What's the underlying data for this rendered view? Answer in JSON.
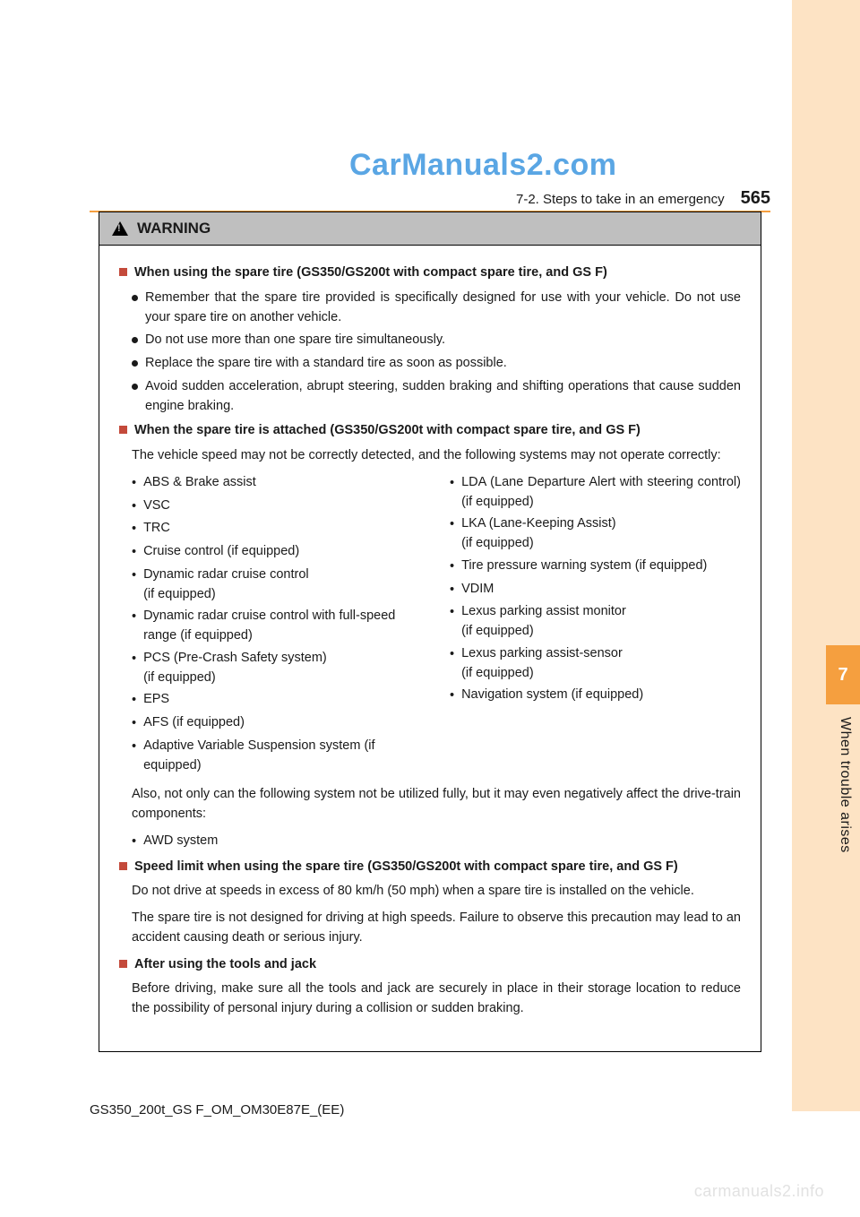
{
  "watermark_top": "CarManuals2.com",
  "watermark_bottom": "carmanuals2.info",
  "header": {
    "breadcrumb": "7-2. Steps to take in an emergency",
    "page_number": "565"
  },
  "sidebar": {
    "chapter_number": "7",
    "chapter_label": "When trouble arises",
    "bg_color": "#fde3c4",
    "tab_color": "#f59f3f"
  },
  "warning": {
    "title": "WARNING",
    "sections": [
      {
        "heading": "When using the spare tire (GS350/GS200t with compact spare tire, and GS F)",
        "bullets": [
          "Remember that the spare tire provided is specifically designed for use with your vehicle. Do not use your spare tire on another vehicle.",
          "Do not use more than one spare tire simultaneously.",
          "Replace the spare tire with a standard tire as soon as possible.",
          "Avoid sudden acceleration, abrupt steering, sudden braking and shifting operations that cause sudden engine braking."
        ]
      },
      {
        "heading": "When the spare tire is attached (GS350/GS200t with compact spare tire, and GS F)",
        "intro": "The vehicle speed may not be correctly detected, and the following systems may not operate correctly:",
        "columns": {
          "left": [
            "ABS & Brake assist",
            "VSC",
            "TRC",
            "Cruise control (if equipped)",
            "Dynamic radar cruise control\n(if equipped)",
            "Dynamic radar cruise control with full-speed range (if equipped)",
            "PCS (Pre-Crash Safety system)\n(if equipped)",
            "EPS",
            "AFS (if equipped)",
            "Adaptive Variable Suspension system (if equipped)"
          ],
          "right": [
            {
              "text": "LDA (Lane Departure Alert with steering control) (if equipped)",
              "justify": true
            },
            {
              "text": "LKA (Lane-Keeping Assist)\n(if equipped)"
            },
            {
              "text": "Tire pressure warning system (if equipped)",
              "justify": true
            },
            {
              "text": "VDIM"
            },
            {
              "text": "Lexus parking assist monitor\n(if equipped)"
            },
            {
              "text": "Lexus parking assist-sensor\n(if equipped)"
            },
            {
              "text": "Navigation system (if equipped)"
            }
          ]
        },
        "after_cols": "Also, not only can the following system not be utilized fully, but it may even negatively affect the drive-train components:",
        "after_items": [
          "AWD system"
        ]
      },
      {
        "heading": "Speed limit when using the spare tire (GS350/GS200t with compact spare tire, and GS F)",
        "paras": [
          "Do not drive at speeds in excess of 80 km/h (50 mph) when a spare tire is installed on the vehicle.",
          "The spare tire is not designed for driving at high speeds. Failure to observe this precaution may lead to an accident causing death or serious injury."
        ]
      },
      {
        "heading": "After using the tools and jack",
        "paras": [
          "Before driving, make sure all the tools and jack are securely in place in their storage location to reduce the possibility of personal injury during a collision or sudden braking."
        ]
      }
    ]
  },
  "footer_code": "GS350_200t_GS F_OM_OM30E87E_(EE)",
  "colors": {
    "accent": "#f59f3f",
    "marker": "#c44a3b",
    "watermark_blue": "#5aa6e4",
    "text": "#1a1a1a",
    "warning_header_bg": "#bfbfbf"
  }
}
